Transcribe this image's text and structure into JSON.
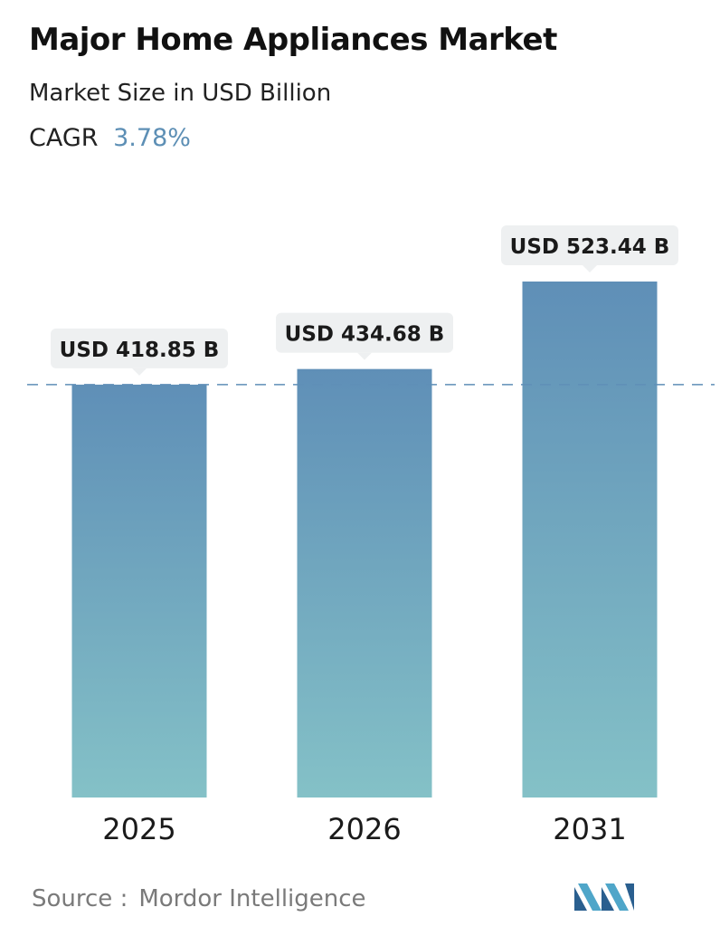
{
  "header": {
    "title": "Major Home Appliances Market",
    "subtitle": "Market Size in USD Billion",
    "cagr_label": "CAGR",
    "cagr_value": "3.78%"
  },
  "chart_data": {
    "type": "bar",
    "title": "Major Home Appliances Market",
    "subtitle": "Market Size in USD Billion",
    "categories": [
      "2025",
      "2026",
      "2031"
    ],
    "values": [
      418.85,
      434.68,
      523.44
    ],
    "value_labels": [
      "USD 418.85 B",
      "USD 434.68 B",
      "USD 523.44 B"
    ],
    "unit": "USD Billion",
    "reference_line": {
      "value": 418.85,
      "style": "dashed"
    },
    "ylim": [
      0,
      523.44
    ],
    "grid": false,
    "legend": "none",
    "colors": {
      "bar_top": "#5f8fb7",
      "bar_bottom": "#84c1c7",
      "label_bg": "#eef0f1",
      "ref_line": "#5f8fb7"
    }
  },
  "footer": {
    "source_label": "Source :",
    "source_value": "Mordor Intelligence",
    "logo_icon": "mordor-intelligence-logo-icon"
  }
}
